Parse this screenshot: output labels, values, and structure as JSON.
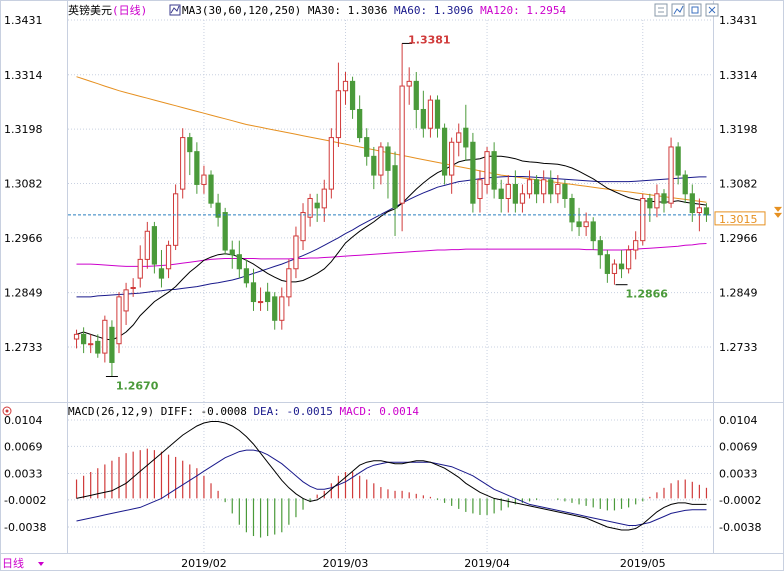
{
  "header": {
    "symbol": "英镑美元",
    "period": "(日线)",
    "ma_label": "MA3(30,60,120,250)",
    "ma30": "MA30: 1.3036",
    "ma60": "MA60: 1.3096",
    "ma120": "MA120: 1.2954"
  },
  "macd_header": {
    "title": "MACD(26,12,9)",
    "diff": "DIFF: -0.0008",
    "dea": "DEA: -0.0015",
    "macd": "MACD: 0.0014"
  },
  "footer": {
    "period_label": "日线"
  },
  "colors": {
    "up": "#d03a3a",
    "down": "#4a9a3a",
    "ma30": "#000000",
    "ma60": "#1a1a8c",
    "ma120": "#cc00cc",
    "ma250": "#e69020",
    "current_price": "#e69020",
    "grid": "#c8d0e0",
    "price_line": "#2a7fbf"
  },
  "chart_data": {
    "type": "candlestick",
    "price_ticks": [
      "1.3431",
      "1.3314",
      "1.3198",
      "1.3082",
      "1.2966",
      "1.2849",
      "1.2733"
    ],
    "price_tick_values": [
      1.3431,
      1.3314,
      1.3198,
      1.3082,
      1.2966,
      1.2849,
      1.2733
    ],
    "macd_ticks": [
      "0.0104",
      "0.0069",
      "0.0033",
      "-0.0002",
      "-0.0038"
    ],
    "macd_tick_values": [
      0.0104,
      0.0069,
      0.0033,
      -0.0002,
      -0.0038
    ],
    "x_labels": [
      "2019/02",
      "2019/03",
      "2019/04",
      "2019/05"
    ],
    "x_label_index": [
      18,
      38,
      58,
      80
    ],
    "current_price": 1.3015,
    "current_price_label": "1.3015",
    "annotations": [
      {
        "text": "1.3381",
        "index": 46,
        "value": 1.3381,
        "color": "#d03a3a",
        "anchor": "high"
      },
      {
        "text": "1.2670",
        "index": 5,
        "value": 1.267,
        "color": "#4a9a3a",
        "anchor": "low"
      },
      {
        "text": "1.2866",
        "index": 77,
        "value": 1.2866,
        "color": "#4a9a3a",
        "anchor": "low"
      }
    ],
    "candles": [
      [
        1.275,
        1.276,
        1.273,
        1.277
      ],
      [
        1.276,
        1.274,
        1.272,
        1.2775
      ],
      [
        1.274,
        1.274,
        1.272,
        1.276
      ],
      [
        1.2745,
        1.272,
        1.271,
        1.276
      ],
      [
        1.272,
        1.279,
        1.27,
        1.28
      ],
      [
        1.2775,
        1.27,
        1.267,
        1.279
      ],
      [
        1.274,
        1.284,
        1.272,
        1.285
      ],
      [
        1.281,
        1.2855,
        1.278,
        1.287
      ],
      [
        1.286,
        1.286,
        1.284,
        1.288
      ],
      [
        1.288,
        1.292,
        1.286,
        1.295
      ],
      [
        1.292,
        1.298,
        1.29,
        1.3
      ],
      [
        1.299,
        1.291,
        1.289,
        1.3
      ],
      [
        1.29,
        1.288,
        1.286,
        1.294
      ],
      [
        1.29,
        1.295,
        1.288,
        1.296
      ],
      [
        1.295,
        1.306,
        1.294,
        1.308
      ],
      [
        1.307,
        1.318,
        1.305,
        1.32
      ],
      [
        1.318,
        1.315,
        1.31,
        1.319
      ],
      [
        1.315,
        1.308,
        1.306,
        1.317
      ],
      [
        1.308,
        1.31,
        1.306,
        1.312
      ],
      [
        1.31,
        1.304,
        1.303,
        1.311
      ],
      [
        1.304,
        1.301,
        1.299,
        1.306
      ],
      [
        1.302,
        1.294,
        1.293,
        1.303
      ],
      [
        1.294,
        1.293,
        1.29,
        1.296
      ],
      [
        1.293,
        1.29,
        1.288,
        1.296
      ],
      [
        1.29,
        1.287,
        1.286,
        1.292
      ],
      [
        1.287,
        1.283,
        1.281,
        1.29
      ],
      [
        1.283,
        1.283,
        1.281,
        1.286
      ],
      [
        1.285,
        1.283,
        1.281,
        1.287
      ],
      [
        1.284,
        1.279,
        1.277,
        1.285
      ],
      [
        1.279,
        1.284,
        1.277,
        1.286
      ],
      [
        1.284,
        1.29,
        1.282,
        1.292
      ],
      [
        1.29,
        1.297,
        1.288,
        1.299
      ],
      [
        1.296,
        1.302,
        1.294,
        1.304
      ],
      [
        1.301,
        1.305,
        1.299,
        1.306
      ],
      [
        1.304,
        1.303,
        1.3,
        1.306
      ],
      [
        1.303,
        1.307,
        1.3,
        1.309
      ],
      [
        1.307,
        1.318,
        1.305,
        1.32
      ],
      [
        1.318,
        1.328,
        1.316,
        1.334
      ],
      [
        1.328,
        1.33,
        1.325,
        1.332
      ],
      [
        1.33,
        1.324,
        1.322,
        1.331
      ],
      [
        1.324,
        1.318,
        1.317,
        1.327
      ],
      [
        1.318,
        1.314,
        1.312,
        1.32
      ],
      [
        1.314,
        1.31,
        1.307,
        1.316
      ],
      [
        1.31,
        1.316,
        1.308,
        1.317
      ],
      [
        1.316,
        1.311,
        1.305,
        1.317
      ],
      [
        1.312,
        1.303,
        1.297,
        1.315
      ],
      [
        1.304,
        1.329,
        1.298,
        1.3381
      ],
      [
        1.329,
        1.33,
        1.325,
        1.333
      ],
      [
        1.33,
        1.324,
        1.32,
        1.332
      ],
      [
        1.324,
        1.32,
        1.318,
        1.328
      ],
      [
        1.32,
        1.326,
        1.318,
        1.327
      ],
      [
        1.326,
        1.32,
        1.318,
        1.327
      ],
      [
        1.32,
        1.31,
        1.308,
        1.321
      ],
      [
        1.31,
        1.317,
        1.306,
        1.318
      ],
      [
        1.317,
        1.319,
        1.314,
        1.321
      ],
      [
        1.32,
        1.316,
        1.313,
        1.325
      ],
      [
        1.317,
        1.304,
        1.302,
        1.319
      ],
      [
        1.305,
        1.309,
        1.302,
        1.311
      ],
      [
        1.308,
        1.315,
        1.306,
        1.316
      ],
      [
        1.315,
        1.307,
        1.305,
        1.317
      ],
      [
        1.307,
        1.305,
        1.302,
        1.309
      ],
      [
        1.305,
        1.308,
        1.302,
        1.31
      ],
      [
        1.308,
        1.304,
        1.302,
        1.311
      ],
      [
        1.304,
        1.306,
        1.302,
        1.308
      ],
      [
        1.306,
        1.309,
        1.305,
        1.311
      ],
      [
        1.309,
        1.306,
        1.304,
        1.31
      ],
      [
        1.306,
        1.309,
        1.304,
        1.311
      ],
      [
        1.309,
        1.306,
        1.304,
        1.311
      ],
      [
        1.306,
        1.308,
        1.304,
        1.31
      ],
      [
        1.308,
        1.305,
        1.303,
        1.309
      ],
      [
        1.305,
        1.3,
        1.298,
        1.306
      ],
      [
        1.3,
        1.299,
        1.297,
        1.303
      ],
      [
        1.299,
        1.3,
        1.297,
        1.302
      ],
      [
        1.3,
        1.296,
        1.294,
        1.301
      ],
      [
        1.296,
        1.293,
        1.29,
        1.297
      ],
      [
        1.293,
        1.289,
        1.287,
        1.294
      ],
      [
        1.289,
        1.291,
        1.2866,
        1.292
      ],
      [
        1.291,
        1.29,
        1.288,
        1.294
      ],
      [
        1.29,
        1.294,
        1.289,
        1.295
      ],
      [
        1.294,
        1.296,
        1.292,
        1.298
      ],
      [
        1.296,
        1.305,
        1.295,
        1.306
      ],
      [
        1.305,
        1.303,
        1.3,
        1.306
      ],
      [
        1.303,
        1.306,
        1.301,
        1.308
      ],
      [
        1.306,
        1.304,
        1.302,
        1.307
      ],
      [
        1.304,
        1.316,
        1.303,
        1.318
      ],
      [
        1.316,
        1.31,
        1.308,
        1.317
      ],
      [
        1.31,
        1.306,
        1.304,
        1.311
      ],
      [
        1.306,
        1.302,
        1.3,
        1.308
      ],
      [
        1.302,
        1.303,
        1.298,
        1.305
      ],
      [
        1.303,
        1.3015,
        1.3,
        1.304
      ]
    ],
    "ma30": [
      1.276,
      1.2765,
      1.276,
      1.2755,
      1.275,
      1.2748,
      1.2755,
      1.2765,
      1.278,
      1.28,
      1.2815,
      1.283,
      1.284,
      1.285,
      1.2862,
      1.2878,
      1.2893,
      1.2905,
      1.2918,
      1.2925,
      1.293,
      1.2932,
      1.293,
      1.2925,
      1.2918,
      1.291,
      1.29,
      1.289,
      1.2882,
      1.2875,
      1.2872,
      1.2872,
      1.2875,
      1.2882,
      1.289,
      1.29,
      1.2915,
      1.2935,
      1.2955,
      1.2968,
      1.298,
      1.299,
      1.3,
      1.3012,
      1.3022,
      1.3028,
      1.304,
      1.3055,
      1.307,
      1.3083,
      1.3095,
      1.3105,
      1.3112,
      1.312,
      1.3128,
      1.3132,
      1.3133,
      1.3135,
      1.314,
      1.314,
      1.314,
      1.3138,
      1.3135,
      1.313,
      1.3128,
      1.3127,
      1.3125,
      1.3124,
      1.3123,
      1.312,
      1.3115,
      1.3108,
      1.31,
      1.3092,
      1.3082,
      1.3072,
      1.3065,
      1.3058,
      1.3052,
      1.3048,
      1.3045,
      1.3044,
      1.3043,
      1.3042,
      1.3043,
      1.3045,
      1.3042,
      1.304,
      1.3038,
      1.3036
    ],
    "ma60": [
      1.284,
      1.284,
      1.284,
      1.2842,
      1.2843,
      1.2844,
      1.2845,
      1.2846,
      1.2847,
      1.2848,
      1.285,
      1.2852,
      1.2853,
      1.2855,
      1.2856,
      1.2858,
      1.286,
      1.2862,
      1.2865,
      1.2868,
      1.287,
      1.2873,
      1.2876,
      1.288,
      1.2885,
      1.289,
      1.2895,
      1.29,
      1.2905,
      1.291,
      1.2916,
      1.2922,
      1.2928,
      1.2935,
      1.2942,
      1.295,
      1.2958,
      1.2966,
      1.2975,
      1.2983,
      1.2992,
      1.3,
      1.3008,
      1.3016,
      1.3024,
      1.3032,
      1.304,
      1.3048,
      1.3055,
      1.3062,
      1.3068,
      1.3074,
      1.3078,
      1.3082,
      1.3086,
      1.3088,
      1.309,
      1.3092,
      1.3094,
      1.3095,
      1.3096,
      1.3097,
      1.3097,
      1.3097,
      1.3096,
      1.3095,
      1.3094,
      1.3093,
      1.3092,
      1.3091,
      1.309,
      1.3089,
      1.3088,
      1.3087,
      1.3086,
      1.3086,
      1.3086,
      1.3086,
      1.3086,
      1.3087,
      1.3088,
      1.3089,
      1.309,
      1.3091,
      1.3092,
      1.3093,
      1.3094,
      1.3095,
      1.3096,
      1.3096
    ],
    "ma120": [
      1.291,
      1.291,
      1.291,
      1.2909,
      1.2908,
      1.2907,
      1.2906,
      1.2905,
      1.2905,
      1.2905,
      1.2905,
      1.2906,
      1.2907,
      1.2908,
      1.291,
      1.2912,
      1.2914,
      1.2916,
      1.2918,
      1.292,
      1.2921,
      1.2922,
      1.2922,
      1.2922,
      1.2922,
      1.2922,
      1.2921,
      1.2921,
      1.2921,
      1.2921,
      1.2921,
      1.2922,
      1.2922,
      1.2923,
      1.2923,
      1.2924,
      1.2925,
      1.2926,
      1.2927,
      1.2928,
      1.2929,
      1.293,
      1.2931,
      1.2932,
      1.2933,
      1.2934,
      1.2935,
      1.2936,
      1.2937,
      1.2938,
      1.2939,
      1.294,
      1.294,
      1.2941,
      1.2941,
      1.2942,
      1.2942,
      1.2942,
      1.2942,
      1.2942,
      1.2942,
      1.2942,
      1.2942,
      1.2942,
      1.2942,
      1.2942,
      1.2942,
      1.2942,
      1.2942,
      1.2942,
      1.2942,
      1.2942,
      1.2941,
      1.2941,
      1.294,
      1.294,
      1.294,
      1.294,
      1.2941,
      1.2942,
      1.2943,
      1.2944,
      1.2945,
      1.2946,
      1.2947,
      1.2948,
      1.295,
      1.2951,
      1.2953,
      1.2954
    ],
    "ma250": [
      1.331,
      1.3305,
      1.33,
      1.3295,
      1.329,
      1.3285,
      1.328,
      1.3276,
      1.3272,
      1.3268,
      1.3264,
      1.326,
      1.3256,
      1.3252,
      1.3248,
      1.3244,
      1.324,
      1.3236,
      1.3232,
      1.3228,
      1.3224,
      1.322,
      1.3216,
      1.3212,
      1.3208,
      1.3205,
      1.3202,
      1.3199,
      1.3196,
      1.3193,
      1.319,
      1.3187,
      1.3184,
      1.3181,
      1.3178,
      1.3175,
      1.3172,
      1.3169,
      1.3166,
      1.3163,
      1.316,
      1.3157,
      1.3154,
      1.3151,
      1.3148,
      1.3145,
      1.3142,
      1.3139,
      1.3136,
      1.3133,
      1.313,
      1.3127,
      1.3124,
      1.3121,
      1.3118,
      1.3115,
      1.3112,
      1.3109,
      1.3106,
      1.3103,
      1.31,
      1.3098,
      1.3096,
      1.3094,
      1.3092,
      1.309,
      1.3088,
      1.3086,
      1.3084,
      1.3082,
      1.308,
      1.3078,
      1.3076,
      1.3074,
      1.3072,
      1.307,
      1.3068,
      1.3066,
      1.3064,
      1.3062,
      1.306,
      1.3058,
      1.3056,
      1.3054,
      1.3052,
      1.305,
      1.3048,
      1.3046,
      1.3044,
      1.3042
    ],
    "macd_hist": [
      0.0025,
      0.003,
      0.0035,
      0.004,
      0.0045,
      0.005,
      0.0055,
      0.006,
      0.0062,
      0.0064,
      0.0066,
      0.0064,
      0.0062,
      0.0058,
      0.0055,
      0.005,
      0.0045,
      0.004,
      0.003,
      0.002,
      0.001,
      -0.0005,
      -0.002,
      -0.0035,
      -0.0045,
      -0.005,
      -0.0052,
      -0.005,
      -0.0048,
      -0.0045,
      -0.0035,
      -0.0025,
      -0.0015,
      -0.0005,
      0.0005,
      0.001,
      0.002,
      0.003,
      0.0035,
      0.0035,
      0.003,
      0.0025,
      0.002,
      0.0015,
      0.0012,
      0.001,
      0.001,
      0.0008,
      0.0006,
      0.0004,
      0.0002,
      -0.0002,
      -0.0006,
      -0.001,
      -0.0014,
      -0.0018,
      -0.002,
      -0.0022,
      -0.0022,
      -0.002,
      -0.0016,
      -0.0012,
      -0.0008,
      -0.0006,
      -0.0004,
      -0.0002,
      0.0,
      0.0,
      -0.0002,
      -0.0004,
      -0.0006,
      -0.0008,
      -0.001,
      -0.0012,
      -0.0014,
      -0.0016,
      -0.0016,
      -0.0014,
      -0.0012,
      -0.0008,
      -0.0004,
      0.0002,
      0.0008,
      0.0014,
      0.002,
      0.0024,
      0.0025,
      0.0022,
      0.0018,
      0.0014
    ],
    "diff": [
      0.0,
      0.0002,
      0.0004,
      0.0006,
      0.0008,
      0.001,
      0.0015,
      0.002,
      0.0028,
      0.0036,
      0.0044,
      0.0052,
      0.006,
      0.0068,
      0.0076,
      0.0084,
      0.009,
      0.0096,
      0.01,
      0.0102,
      0.0102,
      0.01,
      0.0096,
      0.009,
      0.0082,
      0.0072,
      0.006,
      0.0048,
      0.0036,
      0.0024,
      0.0014,
      0.0006,
      0.0,
      -0.0004,
      -0.0002,
      0.0004,
      0.0012,
      0.002,
      0.0028,
      0.0036,
      0.0044,
      0.0048,
      0.005,
      0.005,
      0.0048,
      0.0046,
      0.0046,
      0.0048,
      0.005,
      0.005,
      0.0048,
      0.0044,
      0.004,
      0.0034,
      0.0028,
      0.002,
      0.0014,
      0.0008,
      0.0004,
      0.0,
      -0.0002,
      -0.0004,
      -0.0006,
      -0.0008,
      -0.001,
      -0.0012,
      -0.0014,
      -0.0016,
      -0.0018,
      -0.002,
      -0.0022,
      -0.0024,
      -0.0026,
      -0.003,
      -0.0034,
      -0.0038,
      -0.004,
      -0.0042,
      -0.0042,
      -0.004,
      -0.0034,
      -0.0026,
      -0.0018,
      -0.0012,
      -0.0008,
      -0.0006,
      -0.0006,
      -0.0008,
      -0.0008,
      -0.0008
    ],
    "dea": [
      -0.003,
      -0.0028,
      -0.0026,
      -0.0024,
      -0.0022,
      -0.002,
      -0.0018,
      -0.0016,
      -0.0014,
      -0.0012,
      -0.0008,
      -0.0004,
      0.0,
      0.0006,
      0.0012,
      0.0018,
      0.0024,
      0.003,
      0.0036,
      0.0042,
      0.0048,
      0.0054,
      0.0058,
      0.0062,
      0.0064,
      0.0064,
      0.0062,
      0.0058,
      0.0052,
      0.0046,
      0.0038,
      0.003,
      0.0022,
      0.0016,
      0.0012,
      0.0012,
      0.0014,
      0.0018,
      0.0022,
      0.0028,
      0.0034,
      0.004,
      0.0044,
      0.0046,
      0.0048,
      0.0048,
      0.0048,
      0.0048,
      0.0048,
      0.0048,
      0.0048,
      0.0046,
      0.0044,
      0.0042,
      0.0038,
      0.0034,
      0.003,
      0.0024,
      0.0018,
      0.0012,
      0.0008,
      0.0004,
      0.0,
      -0.0004,
      -0.0008,
      -0.001,
      -0.0012,
      -0.0014,
      -0.0016,
      -0.0018,
      -0.002,
      -0.0022,
      -0.0024,
      -0.0026,
      -0.0028,
      -0.003,
      -0.0032,
      -0.0034,
      -0.0036,
      -0.0036,
      -0.0034,
      -0.0032,
      -0.0028,
      -0.0024,
      -0.002,
      -0.0018,
      -0.0016,
      -0.0015,
      -0.0015,
      -0.0015
    ]
  }
}
